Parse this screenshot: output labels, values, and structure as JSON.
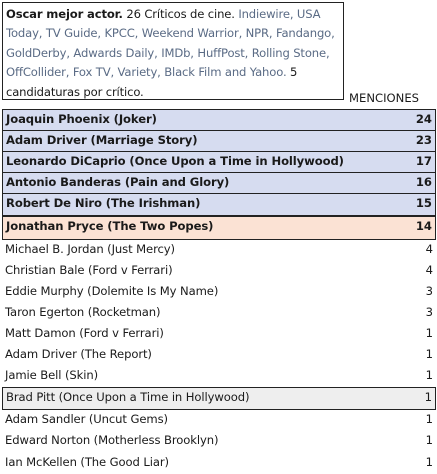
{
  "header": {
    "title": "Oscar mejor actor.",
    "intro": "26 Críticos de cine.",
    "critics": "Indiewire, USA Today, TV Guide, KPCC, Weekend Warrior, NPR, Fandango, GoldDerby, Adwards Daily, IMDb, HuffPost, Rolling Stone, OffCollider, Fox TV, Variety, Black Film and Yahoo.",
    "note": "5 candidaturas por crítico."
  },
  "column_header": "MENCIONES",
  "nominees": [
    {
      "name": "Joaquin Phoenix (Joker)",
      "count": "24"
    },
    {
      "name": "Adam Driver (Marriage Story)",
      "count": "23"
    },
    {
      "name": "Leonardo DiCaprio (Once Upon a Time in Hollywood)",
      "count": "17"
    },
    {
      "name": "Antonio Banderas (Pain and Glory)",
      "count": "16"
    },
    {
      "name": "Robert De Niro (The Irishman)",
      "count": "15"
    }
  ],
  "sixth": {
    "name": "Jonathan Pryce (The Two Popes)",
    "count": "14"
  },
  "others": [
    {
      "name": "Michael B. Jordan (Just Mercy)",
      "count": "4"
    },
    {
      "name": "Christian Bale (Ford v Ferrari)",
      "count": "4"
    },
    {
      "name": "Eddie Murphy (Dolemite Is My Name)",
      "count": "3"
    },
    {
      "name": "Taron Egerton (Rocketman)",
      "count": "3"
    },
    {
      "name": "Matt Damon (Ford v Ferrari)",
      "count": "1"
    },
    {
      "name": "Adam Driver (The Report)",
      "count": "1"
    },
    {
      "name": "Jamie Bell (Skin)",
      "count": "1"
    }
  ],
  "highlighted": {
    "name": "Brad Pitt (Once Upon a Time in Hollywood)",
    "count": "1"
  },
  "rest": [
    {
      "name": "Adam Sandler (Uncut Gems)",
      "count": "1"
    },
    {
      "name": "Edward Norton (Motherless Brooklyn)",
      "count": "1"
    },
    {
      "name": "Ian McKellen (The Good Liar)",
      "count": "1"
    }
  ]
}
